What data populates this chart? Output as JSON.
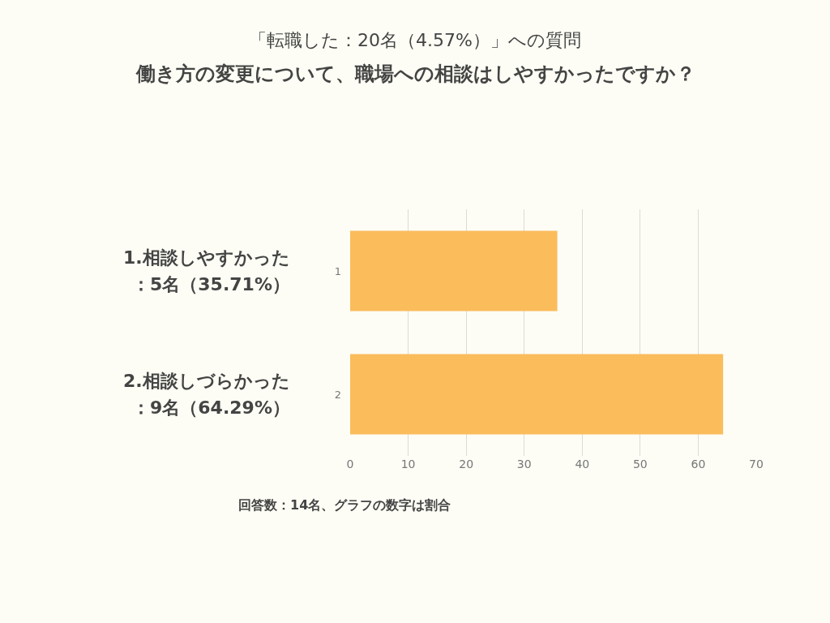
{
  "chart_data": {
    "type": "bar",
    "orientation": "horizontal",
    "title": "「転職した：20名（4.57%）」への質問",
    "subtitle": "働き方の変更について、職場への相談はしやすかったですか？",
    "categories": [
      "1",
      "2"
    ],
    "values": [
      35.71,
      64.29
    ],
    "color": "#fbbc5c",
    "xlim": [
      0,
      70
    ],
    "xticks": [
      0,
      10,
      20,
      30,
      40,
      50,
      60,
      70
    ],
    "grid": "x",
    "annotations": [
      "1.相談しやすかった",
      "：5名（35.71%）",
      "2.相談しづらかった",
      "：9名（64.29%）",
      "回答数：14名、グラフの数字は割合"
    ]
  }
}
